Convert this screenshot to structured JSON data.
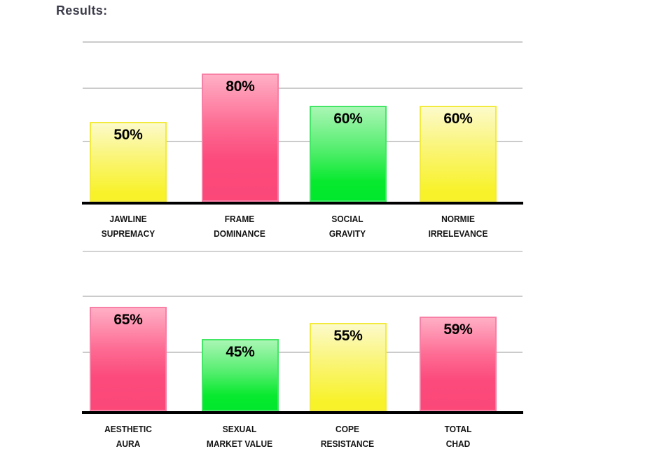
{
  "page": {
    "title": "Results:"
  },
  "chart_data": [
    {
      "type": "bar",
      "title": "",
      "categories": [
        "JAWLINE SUPREMACY",
        "FRAME DOMINANCE",
        "SOCIAL GRAVITY",
        "NORMIE IRRELEVANCE"
      ],
      "categories_lines": [
        [
          "JAWLINE",
          "SUPREMACY"
        ],
        [
          "FRAME",
          "DOMINANCE"
        ],
        [
          "SOCIAL",
          "GRAVITY"
        ],
        [
          "NORMIE",
          "IRRELEVANCE"
        ]
      ],
      "values": [
        50,
        80,
        60,
        60
      ],
      "bar_labels": [
        "50%",
        "80%",
        "60%",
        "60%"
      ],
      "bar_colors": [
        "yellow",
        "pink",
        "green",
        "yellow"
      ],
      "unit": "%",
      "ylim": [
        0,
        100
      ],
      "grid": true,
      "legend": false,
      "xlabel": "",
      "ylabel": ""
    },
    {
      "type": "bar",
      "title": "",
      "categories": [
        "AESTHETIC AURA",
        "SEXUAL MARKET VALUE",
        "COPE RESISTANCE",
        "TOTAL CHAD"
      ],
      "categories_lines": [
        [
          "AESTHETIC",
          "AURA"
        ],
        [
          "SEXUAL",
          "MARKET VALUE"
        ],
        [
          "COPE",
          "RESISTANCE"
        ],
        [
          "TOTAL",
          "CHAD"
        ]
      ],
      "values": [
        65,
        45,
        55,
        59
      ],
      "bar_labels": [
        "65%",
        "45%",
        "55%",
        "59%"
      ],
      "bar_colors": [
        "pink",
        "green",
        "yellow",
        "pink"
      ],
      "unit": "%",
      "ylim": [
        0,
        100
      ],
      "grid": true,
      "legend": false,
      "xlabel": "",
      "ylabel": ""
    }
  ],
  "palette": {
    "yellow_top": "#FCFACA",
    "yellow_bottom": "#F8F22B",
    "yellow_border": "#F2EB3E",
    "pink_top": "#FFAFC5",
    "pink_bottom": "#FC4A7C",
    "pink_border": "#F87FA5",
    "green_top": "#A9F6B4",
    "green_bottom": "#07E92E",
    "green_border": "#43E765",
    "gridline": "#CBCBCB",
    "axis": "#000000",
    "title_text": "#3B3B4A",
    "label_text": "#141414"
  }
}
